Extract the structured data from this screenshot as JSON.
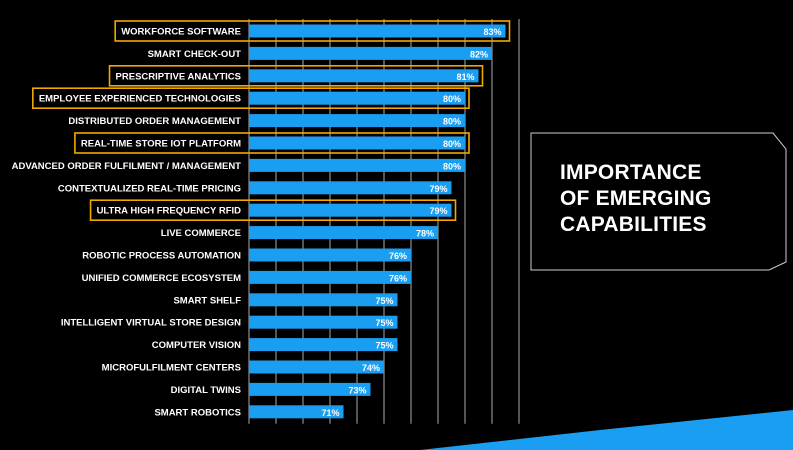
{
  "title_lines": [
    "IMPORTANCE",
    "OF EMERGING",
    "CAPABILITIES"
  ],
  "colors": {
    "background": "#000000",
    "bar": "#1a9ef2",
    "highlight": "#f2a800",
    "grid": "#aaaaaa",
    "text": "#ffffff",
    "panel_border": "#cccccc"
  },
  "chart_data": {
    "type": "bar",
    "orientation": "horizontal",
    "categories": [
      "WORKFORCE SOFTWARE",
      "SMART CHECK-OUT",
      "PRESCRIPTIVE ANALYTICS",
      "EMPLOYEE EXPERIENCED TECHNOLOGIES",
      "DISTRIBUTED ORDER MANAGEMENT",
      "REAL-TIME STORE IOT PLATFORM",
      "ADVANCED ORDER FULFILMENT / MANAGEMENT",
      "CONTEXTUALIZED REAL-TIME PRICING",
      "ULTRA HIGH FREQUENCY RFID",
      "LIVE COMMERCE",
      "ROBOTIC PROCESS AUTOMATION",
      "UNIFIED COMMERCE ECOSYSTEM",
      "SMART SHELF",
      "INTELLIGENT VIRTUAL STORE DESIGN",
      "COMPUTER VISION",
      "MICROFULFILMENT CENTERS",
      "DIGITAL TWINS",
      "SMART ROBOTICS"
    ],
    "values": [
      83,
      82,
      81,
      80,
      80,
      80,
      80,
      79,
      79,
      78,
      76,
      76,
      75,
      75,
      75,
      74,
      73,
      71
    ],
    "value_labels": [
      "83%",
      "82%",
      "81%",
      "80%",
      "80%",
      "80%",
      "80%",
      "79%",
      "79%",
      "78%",
      "76%",
      "76%",
      "75%",
      "75%",
      "75%",
      "74%",
      "73%",
      "71%"
    ],
    "highlighted": [
      "WORKFORCE SOFTWARE",
      "PRESCRIPTIVE ANALYTICS",
      "EMPLOYEE EXPERIENCED TECHNOLOGIES",
      "REAL-TIME STORE IOT PLATFORM",
      "ULTRA HIGH FREQUENCY RFID"
    ],
    "xlim": [
      64,
      84
    ],
    "x_gridlines": [
      66,
      68,
      70,
      72,
      74,
      76,
      78,
      80,
      82,
      84
    ],
    "grid": true,
    "legend": "none",
    "xlabel": "",
    "ylabel": ""
  }
}
